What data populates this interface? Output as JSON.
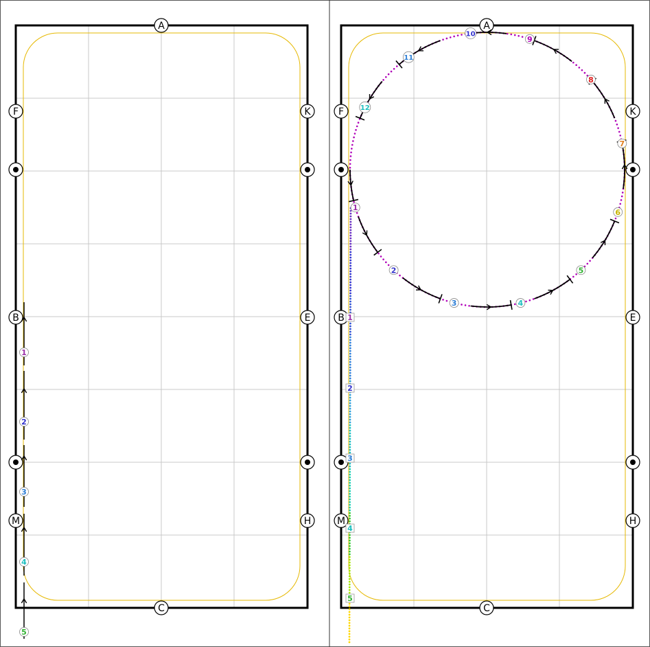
{
  "colors": {
    "arena_border": "#000000",
    "grid": "#c8c8c8",
    "track_line": "#e6b800",
    "path_purple": "#b000b8",
    "frame": "#555555"
  },
  "panels": [
    {
      "id": "left",
      "letters": {
        "top": "A",
        "bottom": "C",
        "left": [
          "F",
          "B",
          "M"
        ],
        "right": [
          "K",
          "E",
          "H"
        ]
      },
      "step_markers": [
        {
          "label": "1",
          "color": "#9b30a8"
        },
        {
          "label": "2",
          "color": "#3333cc"
        },
        {
          "label": "3",
          "color": "#2f7fd6"
        },
        {
          "label": "4",
          "color": "#1fbfbf"
        },
        {
          "label": "5",
          "color": "#33b233"
        }
      ]
    },
    {
      "id": "right",
      "letters": {
        "top": "A",
        "bottom": "C",
        "left": [
          "F",
          "B",
          "M"
        ],
        "right": [
          "K",
          "E",
          "H"
        ]
      },
      "approach_markers": [
        {
          "label": "1",
          "color": "#9b30a8"
        },
        {
          "label": "2",
          "color": "#3333cc"
        },
        {
          "label": "3",
          "color": "#2f7fd6"
        },
        {
          "label": "4",
          "color": "#1fbfbf"
        },
        {
          "label": "5",
          "color": "#33b233"
        }
      ],
      "circle_markers": [
        {
          "label": "1",
          "color": "#9b30a8"
        },
        {
          "label": "2",
          "color": "#3333cc"
        },
        {
          "label": "3",
          "color": "#2f7fd6"
        },
        {
          "label": "4",
          "color": "#1fbfbf"
        },
        {
          "label": "5",
          "color": "#33b233"
        },
        {
          "label": "6",
          "color": "#c8b400"
        },
        {
          "label": "7",
          "color": "#e08020"
        },
        {
          "label": "8",
          "color": "#e02020"
        },
        {
          "label": "9",
          "color": "#b000b8"
        },
        {
          "label": "10",
          "color": "#3333cc"
        },
        {
          "label": "11",
          "color": "#2f7fd6"
        },
        {
          "label": "12",
          "color": "#1fbfbf"
        }
      ]
    }
  ]
}
